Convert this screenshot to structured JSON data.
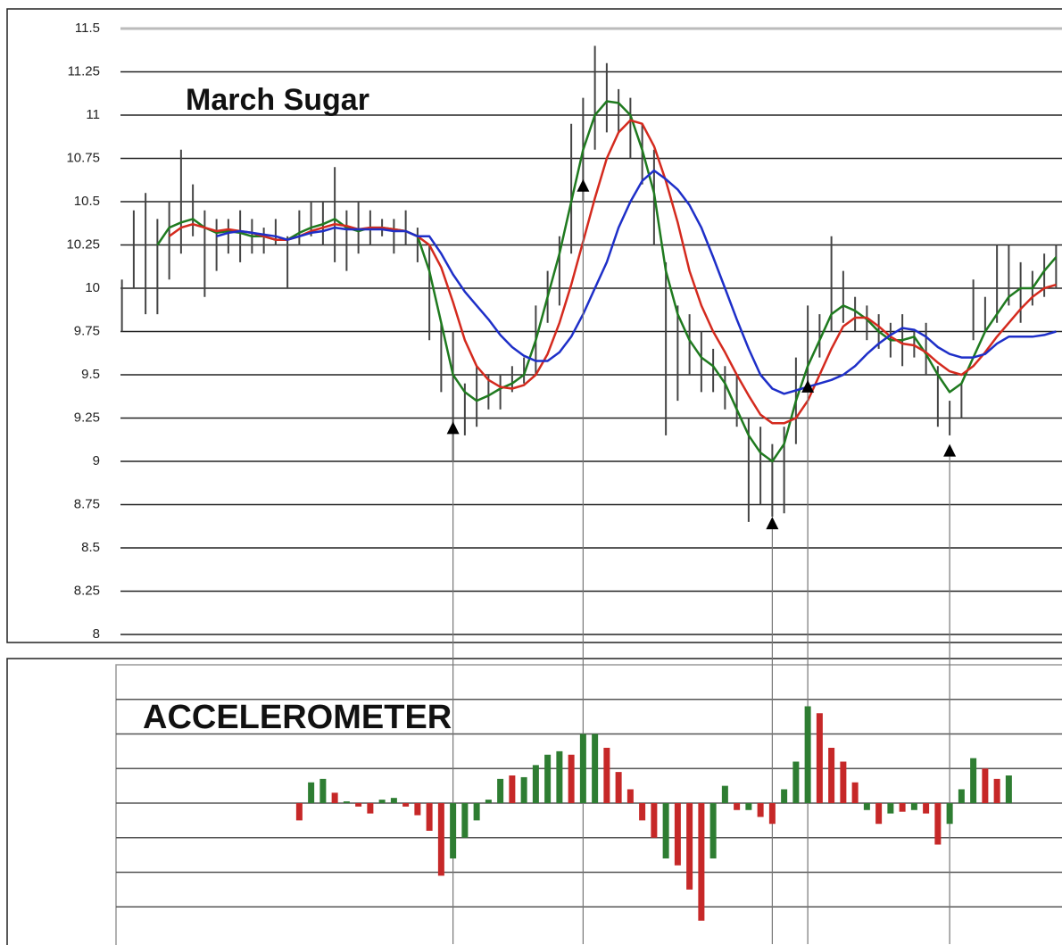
{
  "chart_data": [
    {
      "type": "ohlc",
      "title": "March Sugar",
      "high": [
        10.05,
        10.45,
        10.55,
        10.4,
        10.5,
        10.8,
        10.6,
        10.45,
        10.4,
        10.4,
        10.45,
        10.4,
        10.35,
        10.4,
        10.3,
        10.45,
        10.5,
        10.5,
        10.7,
        10.45,
        10.5,
        10.45,
        10.4,
        10.4,
        10.45,
        10.35,
        10.25,
        9.8,
        9.75,
        9.45,
        9.55,
        9.5,
        9.5,
        9.55,
        9.6,
        9.9,
        10.1,
        10.3,
        10.95,
        11.1,
        11.4,
        11.3,
        11.15,
        11.1,
        10.95,
        10.8,
        10.15,
        9.9,
        9.85,
        9.75,
        9.65,
        9.55,
        9.5,
        9.25,
        9.2,
        9.1,
        9.2,
        9.6,
        9.9,
        9.85,
        10.3,
        10.1,
        9.95,
        9.9,
        9.85,
        9.8,
        9.85,
        9.75,
        9.8,
        9.55,
        9.35,
        9.45,
        10.05,
        9.95,
        10.25,
        10.25,
        10.15,
        10.1,
        10.2,
        10.25
      ],
      "low": [
        9.75,
        10.0,
        9.85,
        9.85,
        10.05,
        10.2,
        10.3,
        9.95,
        10.1,
        10.2,
        10.15,
        10.2,
        10.2,
        10.25,
        10.0,
        10.25,
        10.3,
        10.25,
        10.15,
        10.1,
        10.2,
        10.25,
        10.3,
        10.2,
        10.25,
        10.15,
        9.7,
        9.4,
        9.0,
        9.15,
        9.2,
        9.3,
        9.3,
        9.4,
        9.45,
        9.5,
        9.8,
        9.9,
        10.2,
        10.5,
        10.8,
        10.9,
        10.9,
        10.75,
        10.6,
        10.25,
        9.15,
        9.35,
        9.5,
        9.4,
        9.4,
        9.3,
        9.2,
        8.65,
        8.75,
        8.68,
        8.7,
        9.1,
        9.4,
        9.6,
        9.75,
        9.8,
        9.75,
        9.7,
        9.65,
        9.6,
        9.55,
        9.6,
        9.5,
        9.2,
        9.15,
        9.25,
        9.7,
        9.75,
        9.8,
        9.9,
        9.8,
        9.9,
        9.95,
        10.0
      ],
      "series": [
        {
          "color": "#1f7a1f",
          "values": [
            null,
            null,
            null,
            10.25,
            10.35,
            10.38,
            10.4,
            10.35,
            10.32,
            10.33,
            10.32,
            10.3,
            10.3,
            10.28,
            10.28,
            10.32,
            10.35,
            10.37,
            10.4,
            10.35,
            10.33,
            10.35,
            10.35,
            10.34,
            10.33,
            10.3,
            10.1,
            9.8,
            9.5,
            9.4,
            9.35,
            9.38,
            9.42,
            9.45,
            9.5,
            9.7,
            9.95,
            10.2,
            10.5,
            10.8,
            11.0,
            11.08,
            11.07,
            11.0,
            10.8,
            10.55,
            10.1,
            9.85,
            9.7,
            9.6,
            9.55,
            9.45,
            9.3,
            9.15,
            9.05,
            9.0,
            9.1,
            9.35,
            9.55,
            9.7,
            9.85,
            9.9,
            9.87,
            9.82,
            9.75,
            9.7,
            9.7,
            9.72,
            9.62,
            9.5,
            9.4,
            9.45,
            9.6,
            9.75,
            9.85,
            9.95,
            10.0,
            10.0,
            10.1,
            10.18
          ]
        },
        {
          "color": "#d42a1e",
          "values": [
            null,
            null,
            null,
            null,
            10.3,
            10.35,
            10.37,
            10.35,
            10.33,
            10.34,
            10.33,
            10.32,
            10.3,
            10.28,
            10.28,
            10.3,
            10.33,
            10.35,
            10.37,
            10.36,
            10.34,
            10.35,
            10.35,
            10.34,
            10.33,
            10.3,
            10.25,
            10.12,
            9.92,
            9.7,
            9.55,
            9.47,
            9.43,
            9.42,
            9.44,
            9.5,
            9.62,
            9.8,
            10.02,
            10.27,
            10.52,
            10.75,
            10.9,
            10.97,
            10.95,
            10.82,
            10.62,
            10.38,
            10.1,
            9.9,
            9.75,
            9.63,
            9.5,
            9.38,
            9.27,
            9.22,
            9.22,
            9.25,
            9.35,
            9.5,
            9.65,
            9.78,
            9.83,
            9.83,
            9.78,
            9.72,
            9.68,
            9.67,
            9.63,
            9.57,
            9.52,
            9.5,
            9.55,
            9.63,
            9.72,
            9.8,
            9.88,
            9.95,
            10.0,
            10.02
          ]
        },
        {
          "color": "#1e2fc8",
          "values": [
            null,
            null,
            null,
            null,
            null,
            null,
            null,
            null,
            10.3,
            10.32,
            10.33,
            10.32,
            10.31,
            10.3,
            10.28,
            10.3,
            10.32,
            10.33,
            10.35,
            10.34,
            10.34,
            10.34,
            10.34,
            10.33,
            10.33,
            10.3,
            10.3,
            10.2,
            10.08,
            9.98,
            9.9,
            9.82,
            9.73,
            9.66,
            9.61,
            9.58,
            9.58,
            9.63,
            9.72,
            9.85,
            10.0,
            10.15,
            10.35,
            10.5,
            10.62,
            10.68,
            10.63,
            10.57,
            10.48,
            10.35,
            10.18,
            10.0,
            9.82,
            9.65,
            9.5,
            9.42,
            9.39,
            9.41,
            9.43,
            9.45,
            9.47,
            9.5,
            9.55,
            9.62,
            9.68,
            9.73,
            9.77,
            9.76,
            9.72,
            9.66,
            9.62,
            9.6,
            9.6,
            9.62,
            9.68,
            9.72,
            9.72,
            9.72,
            9.73,
            9.75
          ]
        }
      ],
      "bar_color": "#444444",
      "annotations": [
        {
          "index": 28,
          "value": 9.23
        },
        {
          "index": 39,
          "value": 10.63
        },
        {
          "index": 55,
          "value": 8.68
        },
        {
          "index": 58,
          "value": 9.47
        },
        {
          "index": 70,
          "value": 9.1
        }
      ],
      "ylim": [
        8,
        11.5
      ],
      "yticks": [
        11.5,
        11.25,
        11,
        10.75,
        10.5,
        10.25,
        10,
        9.75,
        9.5,
        9.25,
        9,
        8.75,
        8.5,
        8.25,
        8
      ],
      "grid": true
    },
    {
      "type": "bar",
      "title": "ACCELEROMETER",
      "values": [
        null,
        null,
        null,
        null,
        null,
        null,
        null,
        null,
        null,
        null,
        null,
        null,
        null,
        null,
        null,
        -0.5,
        0.6,
        0.7,
        0.3,
        0.05,
        -0.1,
        -0.3,
        0.1,
        0.15,
        -0.1,
        -0.35,
        -0.8,
        -2.1,
        -1.6,
        -1.0,
        -0.5,
        0.1,
        0.7,
        0.8,
        0.75,
        1.1,
        1.4,
        1.5,
        1.4,
        2.0,
        2.0,
        1.6,
        0.9,
        0.4,
        -0.5,
        -1.0,
        -1.6,
        -1.8,
        -2.5,
        -3.4,
        -1.6,
        0.5,
        -0.2,
        -0.2,
        -0.4,
        -0.6,
        0.4,
        1.2,
        2.8,
        2.6,
        1.6,
        1.2,
        0.6,
        -0.2,
        -0.6,
        -0.3,
        -0.25,
        -0.2,
        -0.3,
        -1.2,
        -0.6,
        0.4,
        1.3,
        1.0,
        0.7,
        0.8,
        null,
        null,
        null,
        null
      ],
      "colors": [
        null,
        null,
        null,
        null,
        null,
        null,
        null,
        null,
        null,
        null,
        null,
        null,
        null,
        null,
        null,
        "#c62828",
        "#2e7d32",
        "#2e7d32",
        "#c62828",
        "#2e7d32",
        "#c62828",
        "#c62828",
        "#2e7d32",
        "#2e7d32",
        "#c62828",
        "#c62828",
        "#c62828",
        "#c62828",
        "#2e7d32",
        "#2e7d32",
        "#2e7d32",
        "#2e7d32",
        "#2e7d32",
        "#c62828",
        "#2e7d32",
        "#2e7d32",
        "#2e7d32",
        "#2e7d32",
        "#c62828",
        "#2e7d32",
        "#2e7d32",
        "#c62828",
        "#c62828",
        "#c62828",
        "#c62828",
        "#c62828",
        "#2e7d32",
        "#c62828",
        "#c62828",
        "#c62828",
        "#2e7d32",
        "#2e7d32",
        "#c62828",
        "#2e7d32",
        "#c62828",
        "#c62828",
        "#2e7d32",
        "#2e7d32",
        "#2e7d32",
        "#c62828",
        "#c62828",
        "#c62828",
        "#c62828",
        "#2e7d32",
        "#c62828",
        "#2e7d32",
        "#c62828",
        "#2e7d32",
        "#c62828",
        "#c62828",
        "#2e7d32",
        "#2e7d32",
        "#2e7d32",
        "#c62828",
        "#c62828",
        "#2e7d32",
        null,
        null,
        null,
        null
      ],
      "ylim": [
        -4,
        4
      ],
      "gridlines": [
        -3,
        -2,
        -1,
        0,
        1,
        2,
        3
      ]
    }
  ]
}
